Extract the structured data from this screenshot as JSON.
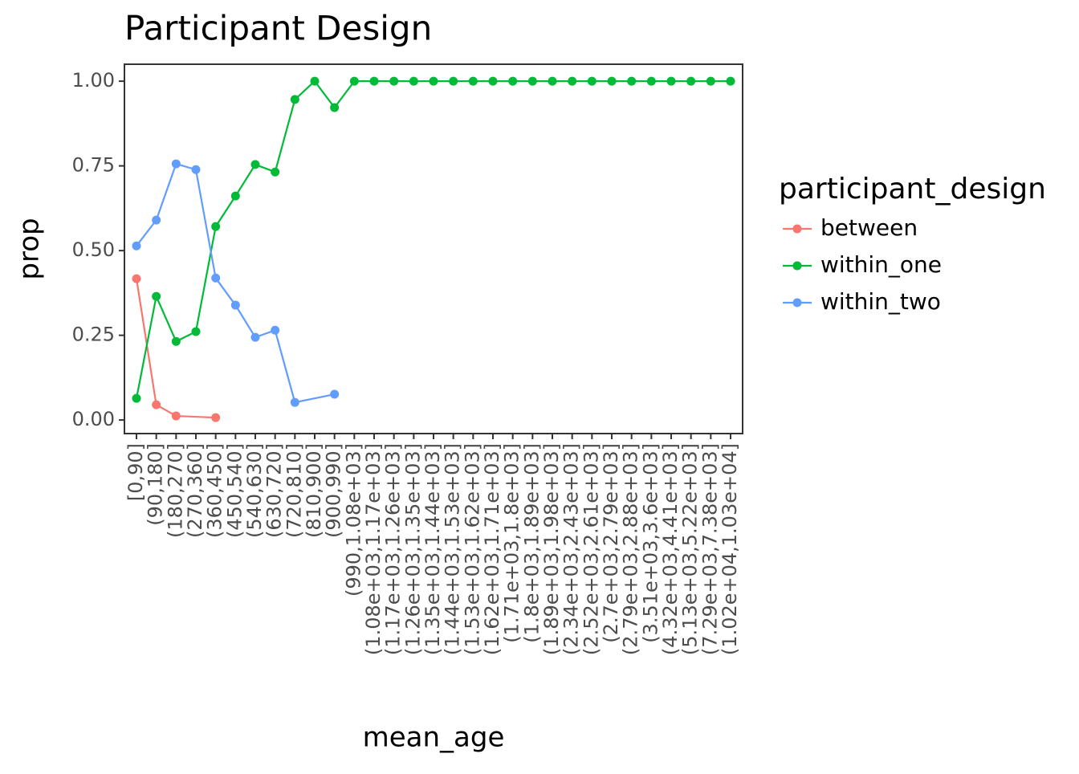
{
  "chart_data": {
    "type": "line",
    "title": "Participant Design",
    "x_label": "mean_age",
    "y_label": "prop",
    "legend_title": "participant_design",
    "legend": "right",
    "grid": false,
    "categories": [
      "[0,90]",
      "(90,180]",
      "(180,270]",
      "(270,360]",
      "(360,450]",
      "(450,540]",
      "(540,630]",
      "(630,720]",
      "(720,810]",
      "(810,900]",
      "(900,990]",
      "(990,1.08e+03]",
      "(1.08e+03,1.17e+03]",
      "(1.17e+03,1.26e+03]",
      "(1.26e+03,1.35e+03]",
      "(1.35e+03,1.44e+03]",
      "(1.44e+03,1.53e+03]",
      "(1.53e+03,1.62e+03]",
      "(1.62e+03,1.71e+03]",
      "(1.71e+03,1.8e+03]",
      "(1.8e+03,1.89e+03]",
      "(1.89e+03,1.98e+03]",
      "(2.34e+03,2.43e+03]",
      "(2.52e+03,2.61e+03]",
      "(2.7e+03,2.79e+03]",
      "(2.79e+03,2.88e+03]",
      "(3.51e+03,3.6e+03]",
      "(4.32e+03,4.41e+03]",
      "(5.13e+03,5.22e+03]",
      "(7.29e+03,7.38e+03]",
      "(1.02e+04,1.03e+04]"
    ],
    "series": [
      {
        "name": "between",
        "color": "#F8766D",
        "values": [
          0.417,
          0.045,
          0.012,
          null,
          0.007,
          null,
          null,
          null,
          null,
          null,
          null,
          null,
          null,
          null,
          null,
          null,
          null,
          null,
          null,
          null,
          null,
          null,
          null,
          null,
          null,
          null,
          null,
          null,
          null,
          null,
          null
        ]
      },
      {
        "name": "within_one",
        "color": "#00BA38",
        "values": [
          0.064,
          0.365,
          0.232,
          0.261,
          0.571,
          0.661,
          0.754,
          0.732,
          0.946,
          1.0,
          0.922,
          1.0,
          1.0,
          1.0,
          1.0,
          1.0,
          1.0,
          1.0,
          1.0,
          1.0,
          1.0,
          1.0,
          1.0,
          1.0,
          1.0,
          1.0,
          1.0,
          1.0,
          1.0,
          1.0,
          1.0
        ]
      },
      {
        "name": "within_two",
        "color": "#619CFF",
        "values": [
          0.514,
          0.59,
          0.756,
          0.739,
          0.419,
          0.339,
          0.244,
          0.265,
          0.052,
          null,
          0.076,
          null,
          null,
          null,
          null,
          null,
          null,
          null,
          null,
          null,
          null,
          null,
          null,
          null,
          null,
          null,
          null,
          null,
          null,
          null,
          null
        ]
      }
    ],
    "ylim": [
      -0.04,
      1.05
    ],
    "yticks": [
      {
        "value": 0,
        "label": "0.00"
      },
      {
        "value": 0.25,
        "label": "0.25"
      },
      {
        "value": 0.5,
        "label": "0.50"
      },
      {
        "value": 0.75,
        "label": "0.75"
      },
      {
        "value": 1,
        "label": "1.00"
      }
    ]
  }
}
